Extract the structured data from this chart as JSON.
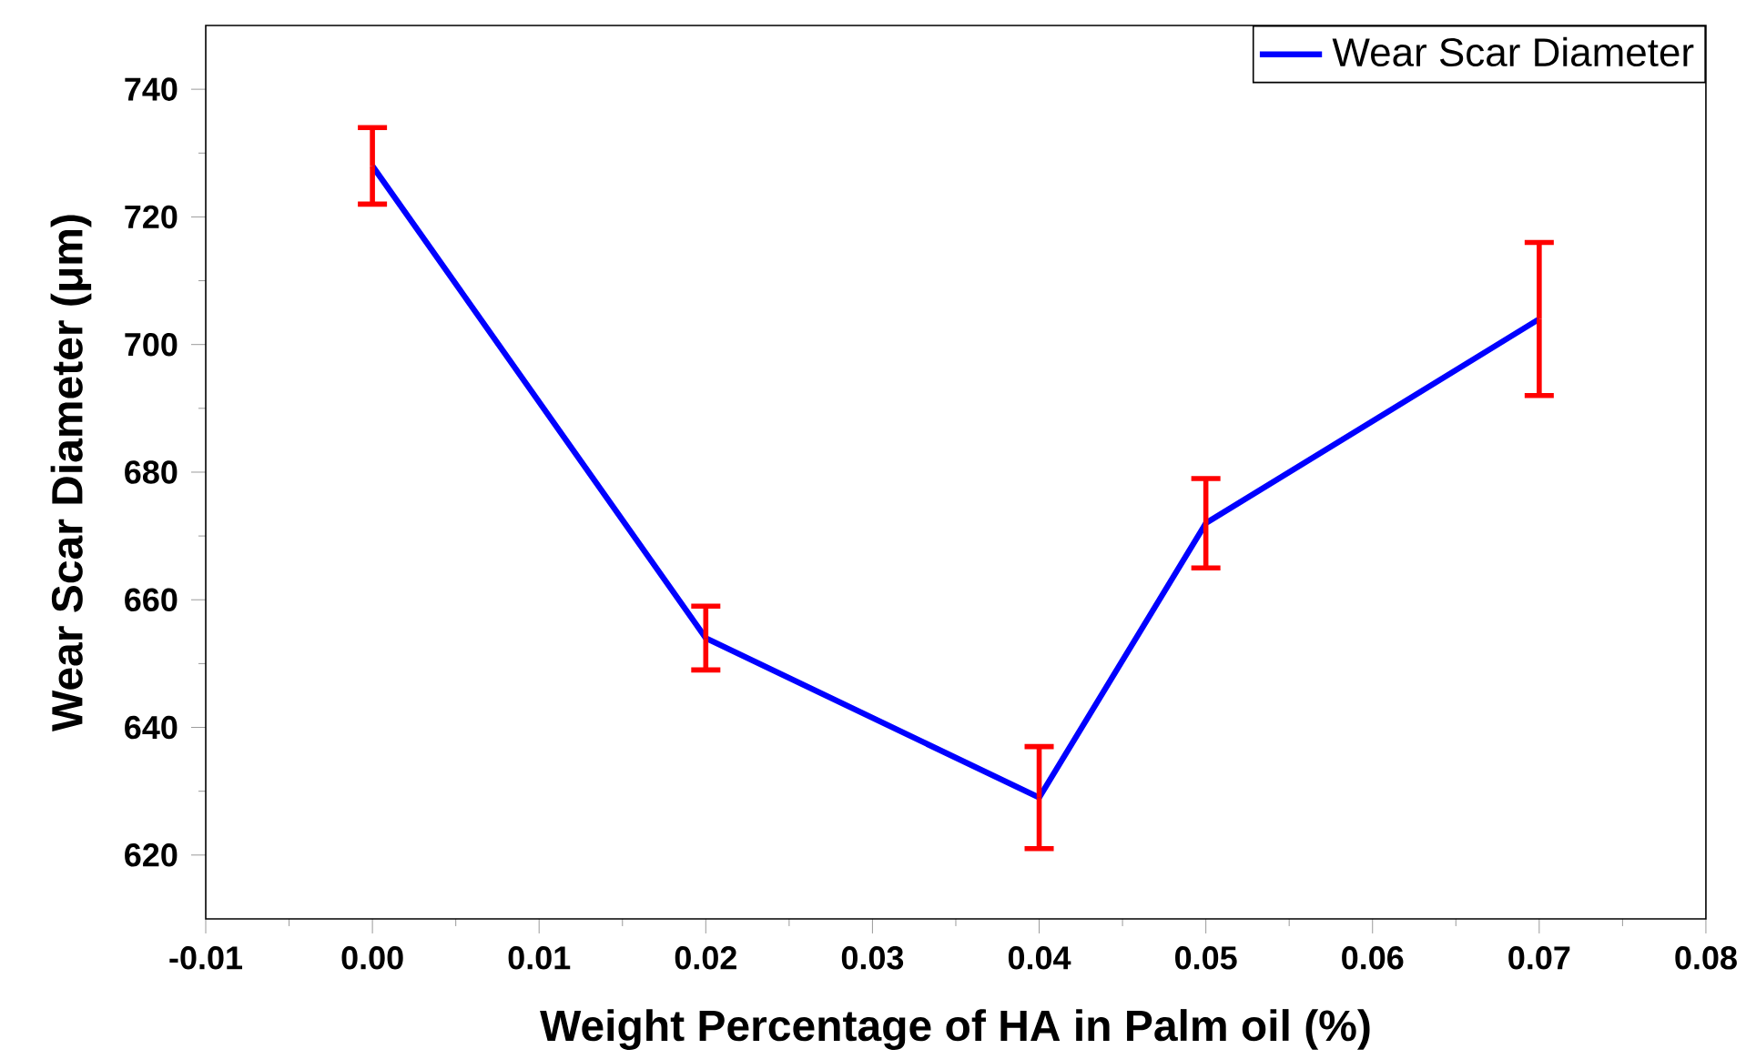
{
  "chart_data": {
    "type": "line",
    "xlabel": "Weight Percentage of HA in Palm oil (%)",
    "ylabel": "Wear Scar Diameter (μm)",
    "x": [
      0.0,
      0.02,
      0.04,
      0.05,
      0.07
    ],
    "series": [
      {
        "name": "Wear Scar Diameter",
        "color": "#0000ff",
        "values": [
          728,
          654,
          629,
          672,
          704
        ],
        "errors": [
          6,
          5,
          8,
          7,
          12
        ]
      }
    ],
    "xlim": [
      -0.01,
      0.08
    ],
    "ylim": [
      610,
      750
    ],
    "xticks": [
      {
        "value": -0.01,
        "label": "-0.01"
      },
      {
        "value": 0.0,
        "label": "0.00"
      },
      {
        "value": 0.01,
        "label": "0.01"
      },
      {
        "value": 0.02,
        "label": "0.02"
      },
      {
        "value": 0.03,
        "label": "0.03"
      },
      {
        "value": 0.04,
        "label": "0.04"
      },
      {
        "value": 0.05,
        "label": "0.05"
      },
      {
        "value": 0.06,
        "label": "0.06"
      },
      {
        "value": 0.07,
        "label": "0.07"
      },
      {
        "value": 0.08,
        "label": "0.08"
      }
    ],
    "yticks": [
      620,
      640,
      660,
      680,
      700,
      720,
      740
    ],
    "legend": "top right",
    "grid": false,
    "marker": "none",
    "line_style": "solid"
  }
}
